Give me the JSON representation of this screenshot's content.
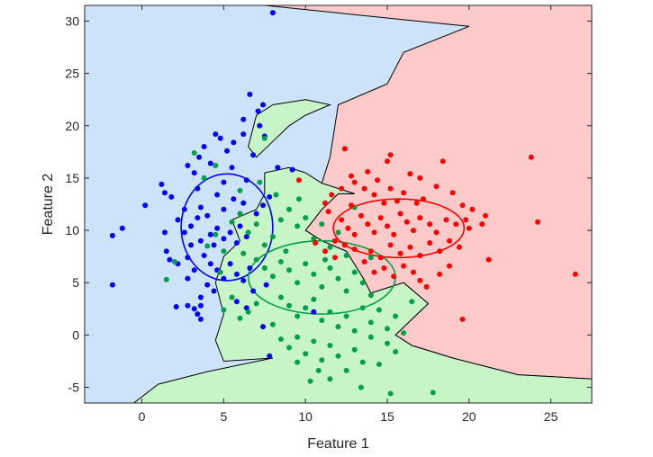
{
  "chart_data": {
    "type": "scatter",
    "title": "",
    "xlabel": "Feature 1",
    "ylabel": "Feature 2",
    "xlim": [
      -3.5,
      27.5
    ],
    "ylim": [
      -6.5,
      31.5
    ],
    "xticks": [
      0,
      5,
      10,
      15,
      20,
      25
    ],
    "yticks": [
      -5,
      0,
      5,
      10,
      15,
      20,
      25,
      30
    ],
    "grid": false,
    "legend": "none",
    "colors": {
      "blue_region": "#cce3fa",
      "green_region": "#c8f5c8",
      "red_region": "#fdcaca",
      "blue_points": "#0000ff",
      "green_points": "#00a04a",
      "red_points": "#ff0000",
      "boundary": "#000000"
    },
    "regions": {
      "red": [
        [
          7.5,
          31.5
        ],
        [
          27.5,
          31.5
        ],
        [
          27.5,
          -4.2
        ],
        [
          23,
          -3.8
        ],
        [
          19,
          -2.2
        ],
        [
          16.5,
          -1
        ],
        [
          15.5,
          0
        ],
        [
          16.5,
          1.5
        ],
        [
          17.5,
          3
        ],
        [
          16,
          5
        ],
        [
          14,
          4
        ],
        [
          13.5,
          5.5
        ],
        [
          12.5,
          8
        ],
        [
          11,
          9
        ],
        [
          10,
          10
        ],
        [
          11,
          12
        ],
        [
          12,
          13.5
        ],
        [
          13,
          13.5
        ],
        [
          11,
          14.5
        ],
        [
          11.5,
          17
        ],
        [
          12,
          22
        ],
        [
          15,
          24
        ],
        [
          16,
          27
        ],
        [
          20,
          29.5
        ]
      ],
      "green": [
        [
          -0.5,
          -6.5
        ],
        [
          1,
          -4.7
        ],
        [
          4,
          -3.5
        ],
        [
          8,
          -2.2
        ],
        [
          5,
          -2.5
        ],
        [
          4.5,
          -0.5
        ],
        [
          5,
          2
        ],
        [
          4.5,
          5
        ],
        [
          5,
          7.5
        ],
        [
          6,
          9
        ],
        [
          5.5,
          11
        ],
        [
          7,
          12
        ],
        [
          7.5,
          13.5
        ],
        [
          7.5,
          15.5
        ],
        [
          9,
          16
        ],
        [
          10,
          15.5
        ],
        [
          11,
          14.5
        ],
        [
          13,
          13.5
        ],
        [
          12,
          13.5
        ],
        [
          11,
          12
        ],
        [
          10,
          10
        ],
        [
          11,
          9
        ],
        [
          12.5,
          8
        ],
        [
          13.5,
          5.5
        ],
        [
          14,
          4
        ],
        [
          16,
          5
        ],
        [
          17.5,
          3
        ],
        [
          16.5,
          1.5
        ],
        [
          15.5,
          0
        ],
        [
          16.5,
          -1
        ],
        [
          19,
          -2.2
        ],
        [
          23,
          -3.8
        ],
        [
          27.5,
          -4.2
        ],
        [
          27.5,
          -6.5
        ]
      ],
      "green_north": [
        [
          6.5,
          18
        ],
        [
          7,
          21
        ],
        [
          8,
          22
        ],
        [
          10,
          22.5
        ],
        [
          11.5,
          22
        ],
        [
          10,
          21
        ],
        [
          9,
          20
        ],
        [
          8,
          18.5
        ],
        [
          7,
          17
        ]
      ]
    },
    "ellipses": [
      {
        "name": "",
        "center": [
          5.2,
          10.3
        ],
        "rx": 2.8,
        "ry": 5.1,
        "color": "#0000ff"
      },
      {
        "name": "",
        "center": [
          11.0,
          5.5
        ],
        "rx": 4.5,
        "ry": 3.5,
        "color": "#00a04a"
      },
      {
        "name": "",
        "center": [
          15.7,
          10.2
        ],
        "rx": 4.0,
        "ry": 2.8,
        "color": "#ff0000"
      }
    ],
    "series": [
      {
        "color": "#0000ff",
        "points": [
          [
            -1.8,
            9.5
          ],
          [
            -1.2,
            10.2
          ],
          [
            -1.8,
            4.8
          ],
          [
            0.2,
            12.4
          ],
          [
            1.2,
            14.4
          ],
          [
            1.4,
            13.6
          ],
          [
            1.8,
            13.2
          ],
          [
            1.4,
            9.8
          ],
          [
            1.5,
            8
          ],
          [
            1.7,
            7.2
          ],
          [
            2.2,
            6.8
          ],
          [
            2.1,
            2.7
          ],
          [
            2.8,
            2.8
          ],
          [
            3.2,
            2.5
          ],
          [
            3.6,
            2.8
          ],
          [
            3.4,
            2
          ],
          [
            3.6,
            1.5
          ],
          [
            2.2,
            11
          ],
          [
            2.6,
            12
          ],
          [
            2.8,
            16.2
          ],
          [
            3.2,
            15.5
          ],
          [
            3.4,
            14
          ],
          [
            3.5,
            17
          ],
          [
            3.8,
            18
          ],
          [
            4.2,
            16.4
          ],
          [
            4.5,
            19.2
          ],
          [
            4.8,
            18.8
          ],
          [
            5.2,
            17.6
          ],
          [
            5.5,
            16
          ],
          [
            5,
            14.6
          ],
          [
            5.6,
            18.4
          ],
          [
            6.2,
            19.2
          ],
          [
            6.8,
            17.2
          ],
          [
            7.1,
            21.4
          ],
          [
            7.2,
            20
          ],
          [
            7.5,
            19
          ],
          [
            6.6,
            23
          ],
          [
            7.4,
            22
          ],
          [
            8.0,
            30.8
          ],
          [
            8.3,
            16
          ],
          [
            9.2,
            15.8
          ],
          [
            6.2,
            20.6
          ],
          [
            2.6,
            9.8
          ],
          [
            3.0,
            10.4
          ],
          [
            3.4,
            11.2
          ],
          [
            3.6,
            12.2
          ],
          [
            4.0,
            11.4
          ],
          [
            4.2,
            9.6
          ],
          [
            4.4,
            8.6
          ],
          [
            4.6,
            10.2
          ],
          [
            5,
            9.2
          ],
          [
            5.4,
            9.8
          ],
          [
            5.8,
            8.8
          ],
          [
            6,
            10.4
          ],
          [
            6.4,
            9.4
          ],
          [
            3.8,
            7.6
          ],
          [
            4.2,
            6.8
          ],
          [
            4.6,
            6.2
          ],
          [
            5,
            5.4
          ],
          [
            5.4,
            6.8
          ],
          [
            5.8,
            5.8
          ],
          [
            6.2,
            5.2
          ],
          [
            6.6,
            6.4
          ],
          [
            4,
            4.8
          ],
          [
            4.4,
            4.2
          ],
          [
            3.2,
            6.2
          ],
          [
            2.8,
            7.4
          ],
          [
            3,
            8.6
          ],
          [
            3.6,
            9
          ],
          [
            5,
            12
          ],
          [
            5.6,
            13
          ],
          [
            6.2,
            12.6
          ],
          [
            7,
            11.6
          ],
          [
            7.4,
            12.4
          ],
          [
            7.8,
            13.2
          ],
          [
            6.4,
            14.8
          ],
          [
            4.6,
            13.4
          ],
          [
            5.8,
            3.2
          ],
          [
            6.8,
            4.2
          ],
          [
            7.6,
            4.8
          ],
          [
            2.8,
            5.4
          ],
          [
            3.6,
            3.6
          ],
          [
            6.4,
            2.6
          ],
          [
            7.4,
            0.8
          ],
          [
            10.5,
            2.2
          ],
          [
            7.8,
            -2
          ]
        ]
      },
      {
        "color": "#00a04a",
        "points": [
          [
            7.5,
            18.8
          ],
          [
            4.5,
            16.2
          ],
          [
            6.0,
            13.8
          ],
          [
            2,
            7
          ],
          [
            1.5,
            5.3
          ],
          [
            4.0,
            8.5
          ],
          [
            4.5,
            9.6
          ],
          [
            5,
            8
          ],
          [
            5.5,
            10.8
          ],
          [
            6,
            11.6
          ],
          [
            6.5,
            9.8
          ],
          [
            7,
            10.6
          ],
          [
            7.5,
            8.6
          ],
          [
            8,
            9.4
          ],
          [
            8.5,
            11
          ],
          [
            9,
            12
          ],
          [
            9.5,
            10.4
          ],
          [
            10,
            11.2
          ],
          [
            10.5,
            9.2
          ],
          [
            11,
            10.6
          ],
          [
            11.5,
            8.4
          ],
          [
            12,
            9.8
          ],
          [
            7,
            7.2
          ],
          [
            7.5,
            6.4
          ],
          [
            8,
            5.6
          ],
          [
            8.5,
            7
          ],
          [
            9,
            6.2
          ],
          [
            9.5,
            5
          ],
          [
            10,
            6.8
          ],
          [
            10.5,
            5.8
          ],
          [
            11,
            4.6
          ],
          [
            11.5,
            6.4
          ],
          [
            12,
            5.4
          ],
          [
            12.5,
            4.2
          ],
          [
            13,
            6
          ],
          [
            13.5,
            5
          ],
          [
            14,
            3.8
          ],
          [
            8.5,
            3.6
          ],
          [
            9,
            2.8
          ],
          [
            9.5,
            1.8
          ],
          [
            10,
            2.6
          ],
          [
            10.5,
            3.4
          ],
          [
            11,
            1.4
          ],
          [
            11.5,
            2.2
          ],
          [
            12,
            0.8
          ],
          [
            12.5,
            1.8
          ],
          [
            13,
            0.4
          ],
          [
            13.5,
            2.6
          ],
          [
            14,
            1.2
          ],
          [
            14.5,
            2.4
          ],
          [
            15,
            0.6
          ],
          [
            15.5,
            1.8
          ],
          [
            16,
            0.2
          ],
          [
            5.5,
            3.6
          ],
          [
            6,
            1.6
          ],
          [
            6.5,
            2.2
          ],
          [
            7,
            3
          ],
          [
            5,
            2.4
          ],
          [
            8,
            1
          ],
          [
            8.5,
            -0.4
          ],
          [
            9,
            -1.2
          ],
          [
            9.5,
            -0.2
          ],
          [
            10,
            -1.8
          ],
          [
            10.5,
            -0.6
          ],
          [
            11,
            -2.4
          ],
          [
            11.5,
            -1
          ],
          [
            12,
            -2
          ],
          [
            12.5,
            -3.4
          ],
          [
            13,
            -1.4
          ],
          [
            13.5,
            -2.6
          ],
          [
            14,
            -0.2
          ],
          [
            14.5,
            -2.8
          ],
          [
            15,
            -0.8
          ],
          [
            15.5,
            -1.6
          ],
          [
            9.5,
            -2.6
          ],
          [
            10.8,
            -3.4
          ],
          [
            11.5,
            -4.2
          ],
          [
            10.3,
            -4.4
          ],
          [
            13.4,
            -5
          ],
          [
            15.2,
            -5.6
          ],
          [
            17.8,
            -5.5
          ],
          [
            16.5,
            3.2
          ],
          [
            14,
            7.4
          ],
          [
            12.5,
            7.6
          ],
          [
            13,
            12.2
          ],
          [
            8.2,
            13.4
          ],
          [
            9.6,
            13
          ],
          [
            7.2,
            14.6
          ],
          [
            4.8,
            6
          ],
          [
            6.2,
            7.8
          ],
          [
            8.8,
            8
          ],
          [
            11.2,
            7.2
          ],
          [
            3.8,
            15
          ],
          [
            3.2,
            17.4
          ]
        ]
      },
      {
        "color": "#ff0000",
        "points": [
          [
            26.5,
            5.8
          ],
          [
            24.2,
            10.8
          ],
          [
            23.8,
            17
          ],
          [
            21,
            11.4
          ],
          [
            20.8,
            10.6
          ],
          [
            21.2,
            7.2
          ],
          [
            19.6,
            1.5
          ],
          [
            15.2,
            17.2
          ],
          [
            15,
            16.6
          ],
          [
            16.4,
            15.4
          ],
          [
            17,
            15
          ],
          [
            18.4,
            16.6
          ],
          [
            17.2,
            13
          ],
          [
            18,
            14.2
          ],
          [
            19,
            13.6
          ],
          [
            19.6,
            12.4
          ],
          [
            20.2,
            12
          ],
          [
            20,
            10.2
          ],
          [
            19.2,
            10.6
          ],
          [
            18.6,
            11
          ],
          [
            18,
            9.8
          ],
          [
            17.6,
            10.6
          ],
          [
            17,
            11.2
          ],
          [
            16.6,
            10
          ],
          [
            16.2,
            10.8
          ],
          [
            15.8,
            11.6
          ],
          [
            15.4,
            9.6
          ],
          [
            15,
            10.4
          ],
          [
            14.6,
            11.2
          ],
          [
            14.2,
            9.8
          ],
          [
            13.8,
            10.6
          ],
          [
            13.4,
            11.4
          ],
          [
            13,
            9.6
          ],
          [
            12.6,
            10.2
          ],
          [
            12.2,
            11
          ],
          [
            11.8,
            9
          ],
          [
            11.4,
            11.8
          ],
          [
            16.8,
            12.6
          ],
          [
            15.6,
            12.8
          ],
          [
            14.8,
            12.6
          ],
          [
            14.2,
            13.4
          ],
          [
            13.6,
            14
          ],
          [
            13,
            14.6
          ],
          [
            14.4,
            14.8
          ],
          [
            13.8,
            15.6
          ],
          [
            12.8,
            15.2
          ],
          [
            12.2,
            14
          ],
          [
            11.6,
            13.4
          ],
          [
            15.2,
            14
          ],
          [
            16,
            13.6
          ],
          [
            14,
            8
          ],
          [
            14.6,
            7.4
          ],
          [
            15.2,
            8.6
          ],
          [
            15.8,
            7.8
          ],
          [
            16.4,
            8.4
          ],
          [
            17,
            7.6
          ],
          [
            17.6,
            8.8
          ],
          [
            18.2,
            8
          ],
          [
            18.8,
            9
          ],
          [
            19.4,
            8.4
          ],
          [
            17,
            5.2
          ],
          [
            16.6,
            6
          ],
          [
            16,
            6.6
          ],
          [
            15.4,
            5.6
          ],
          [
            14.8,
            6.4
          ],
          [
            14.2,
            6
          ],
          [
            13.6,
            7
          ],
          [
            13,
            8.2
          ],
          [
            12.4,
            8.6
          ],
          [
            11.8,
            7.4
          ],
          [
            11.2,
            8
          ],
          [
            10.6,
            8.8
          ],
          [
            17.4,
            4.6
          ],
          [
            18.2,
            5.8
          ],
          [
            18.8,
            6.6
          ],
          [
            19.8,
            11
          ],
          [
            9.6,
            14.8
          ],
          [
            12.4,
            17.8
          ],
          [
            11.2,
            12.6
          ],
          [
            12.8,
            12.4
          ]
        ]
      }
    ]
  }
}
